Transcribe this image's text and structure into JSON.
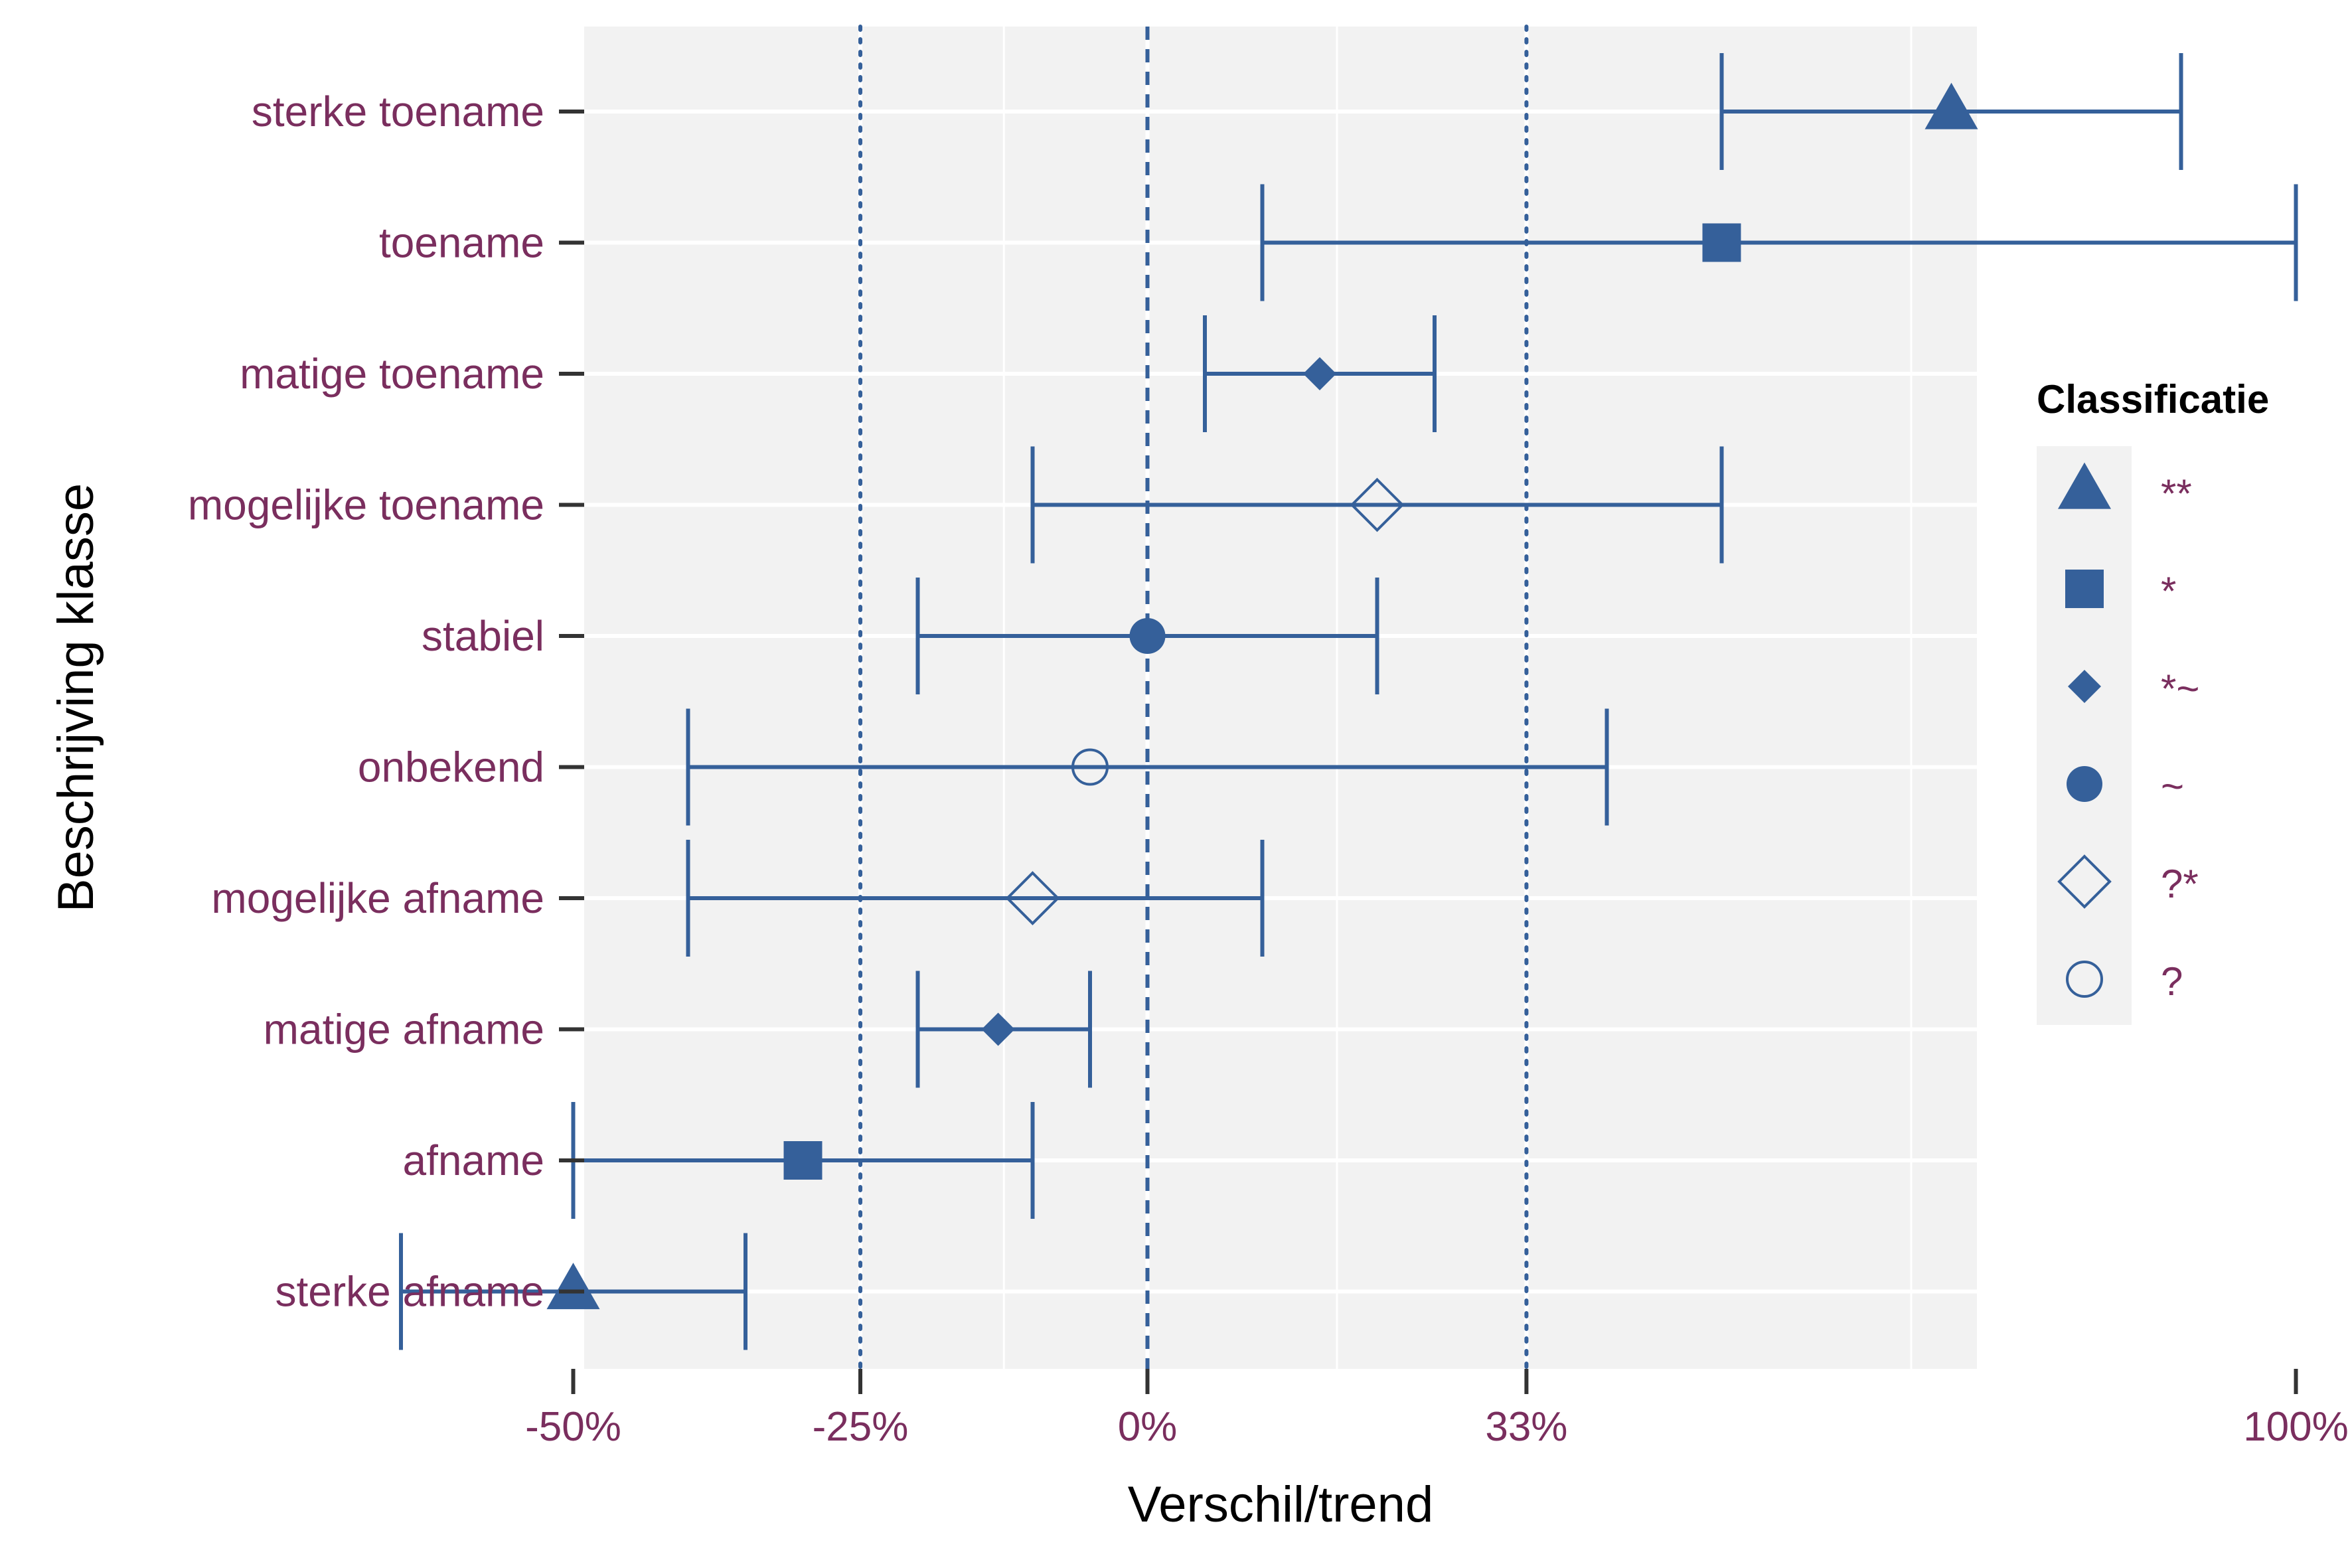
{
  "chart_data": {
    "type": "errorbar",
    "xlabel": "Verschil/trend",
    "ylabel": "Beschrijving klasse",
    "xlim": [
      -73,
      108
    ],
    "x_ticks": [
      {
        "value": -50,
        "label": "-50%"
      },
      {
        "value": -25,
        "label": "-25%"
      },
      {
        "value": 0,
        "label": "0%"
      },
      {
        "value": 33,
        "label": "33%"
      },
      {
        "value": 100,
        "label": "100%"
      }
    ],
    "minor_gridlines": [
      -62.5,
      -12.5,
      16.5,
      66.5
    ],
    "reference_lines": [
      {
        "value": 0,
        "style": "dashed"
      },
      {
        "value": -25,
        "style": "dotted"
      },
      {
        "value": 33,
        "style": "dotted"
      }
    ],
    "categories": [
      {
        "label": "sterke toename",
        "estimate": 70,
        "lower": 50,
        "upper": 90,
        "class": "**"
      },
      {
        "label": "toename",
        "estimate": 50,
        "lower": 10,
        "upper": 100,
        "class": "*"
      },
      {
        "label": "matige toename",
        "estimate": 15,
        "lower": 5,
        "upper": 25,
        "class": "*~"
      },
      {
        "label": "mogelijke toename",
        "estimate": 20,
        "lower": -10,
        "upper": 50,
        "class": "?*"
      },
      {
        "label": "stabiel",
        "estimate": 0,
        "lower": -20,
        "upper": 20,
        "class": "~"
      },
      {
        "label": "onbekend",
        "estimate": -5,
        "lower": -40,
        "upper": 40,
        "class": "?"
      },
      {
        "label": "mogelijke afname",
        "estimate": -10,
        "lower": -40,
        "upper": 10,
        "class": "?*"
      },
      {
        "label": "matige afname",
        "estimate": -13,
        "lower": -20,
        "upper": -5,
        "class": "*~"
      },
      {
        "label": "afname",
        "estimate": -30,
        "lower": -50,
        "upper": -10,
        "class": "*"
      },
      {
        "label": "sterke afname",
        "estimate": -50,
        "lower": -65,
        "upper": -35,
        "class": "**"
      }
    ],
    "grid": true,
    "legend": {
      "title": "Classificatie",
      "position": "right",
      "items": [
        {
          "label": "**",
          "shape": "triangle-filled"
        },
        {
          "label": "*",
          "shape": "square-filled"
        },
        {
          "label": "*~",
          "shape": "diamond-filled-small"
        },
        {
          "label": "~",
          "shape": "circle-filled"
        },
        {
          "label": "?*",
          "shape": "diamond-open"
        },
        {
          "label": "?",
          "shape": "circle-open"
        }
      ]
    },
    "colors": {
      "series": "#35609a",
      "panel": "#f2f2f2",
      "grid": "#ffffff",
      "label_text": "#7a2e5e"
    }
  }
}
